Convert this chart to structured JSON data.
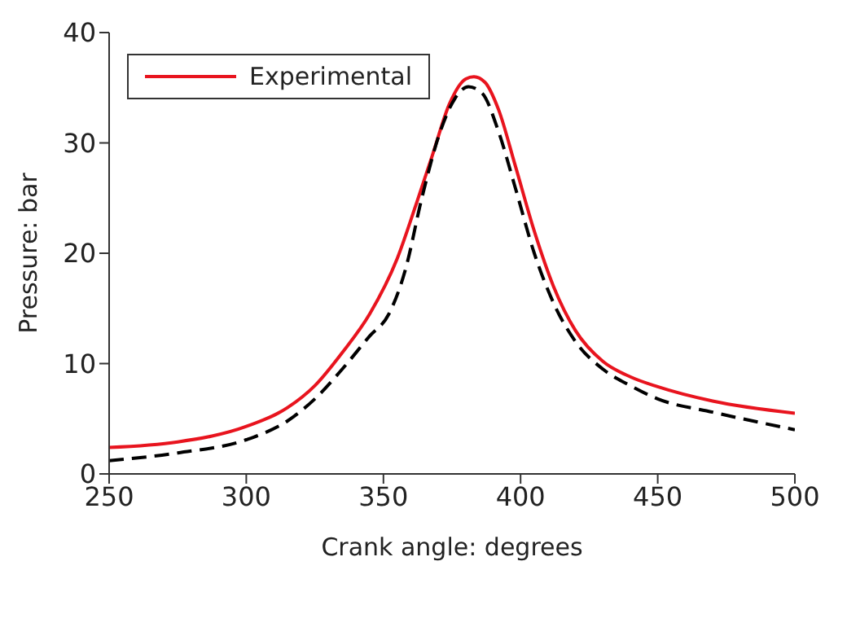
{
  "chart_data": {
    "type": "line",
    "xlabel": "Crank angle: degrees",
    "ylabel": "Pressure: bar",
    "xlim": [
      250,
      500
    ],
    "xticks": [
      250,
      300,
      350,
      400,
      450,
      500
    ],
    "ylim": [
      0,
      40
    ],
    "yticks": [
      0,
      10,
      20,
      30,
      40
    ],
    "grid": false,
    "legend": "top left",
    "marker": "none",
    "series": [
      {
        "name": "Experimental",
        "color": "#e8141e",
        "line_style": "solid",
        "x": [
          250,
          275,
          300,
          315,
          325,
          335,
          345,
          355,
          362,
          368,
          374,
          380,
          383,
          387,
          392,
          398,
          405,
          412,
          420,
          430,
          440,
          450,
          470,
          500
        ],
        "values": [
          2.4,
          2.9,
          4.3,
          6,
          8,
          11,
          14.5,
          19.5,
          24.5,
          29,
          33.5,
          35.8,
          36,
          35.5,
          33,
          28,
          22,
          17,
          13,
          10.2,
          8.8,
          7.9,
          6.6,
          5.5
        ]
      },
      {
        "color": "#000000",
        "line_style": "dashed",
        "x": [
          250,
          275,
          300,
          315,
          325,
          335,
          345,
          352,
          358,
          364,
          370,
          376,
          381,
          386,
          392,
          398,
          405,
          412,
          420,
          430,
          440,
          450,
          470,
          500
        ],
        "values": [
          1.2,
          1.9,
          3.1,
          4.8,
          6.8,
          9.5,
          12.5,
          14.5,
          18.5,
          25,
          30.5,
          34,
          35.1,
          34.5,
          31,
          26,
          20,
          15.5,
          12,
          9.5,
          8,
          6.8,
          5.6,
          4
        ]
      }
    ]
  }
}
